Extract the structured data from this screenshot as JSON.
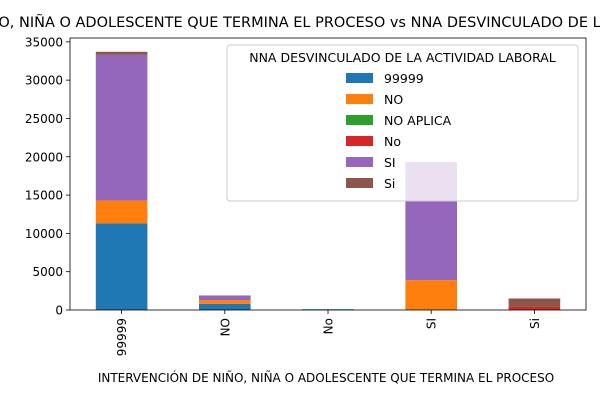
{
  "chart_data": {
    "type": "bar",
    "stacked": true,
    "title": "INTERVENCIÓN DE NIÑO, NIÑA O ADOLESCENTE QUE TERMINA EL PROCESO vs NNA DESVINCULADO DE LA ACTIVIDAD LABORAL",
    "xlabel": "INTERVENCIÓN DE NIÑO, NIÑA O ADOLESCENTE QUE TERMINA EL PROCESO",
    "ylabel": "",
    "categories": [
      "99999",
      "NO",
      "No",
      "SI",
      "Si"
    ],
    "ylim": [
      0,
      35500
    ],
    "yticks": [
      0,
      5000,
      10000,
      15000,
      20000,
      25000,
      30000,
      35000
    ],
    "legend": {
      "title": "NNA DESVINCULADO DE LA ACTIVIDAD LABORAL",
      "position": "upper right"
    },
    "series": [
      {
        "name": "99999",
        "color": "#1f77b4",
        "values": [
          11300,
          800,
          100,
          0,
          0
        ]
      },
      {
        "name": "NO",
        "color": "#ff7f0e",
        "values": [
          3000,
          500,
          0,
          3900,
          0
        ]
      },
      {
        "name": "NO APLICA",
        "color": "#2ca02c",
        "values": [
          0,
          0,
          0,
          0,
          0
        ]
      },
      {
        "name": "No",
        "color": "#d62728",
        "values": [
          0,
          0,
          0,
          0,
          400
        ]
      },
      {
        "name": "SI",
        "color": "#9467bd",
        "values": [
          19000,
          600,
          0,
          15400,
          0
        ]
      },
      {
        "name": "Si",
        "color": "#8c564b",
        "values": [
          400,
          0,
          0,
          0,
          1100
        ]
      }
    ]
  }
}
